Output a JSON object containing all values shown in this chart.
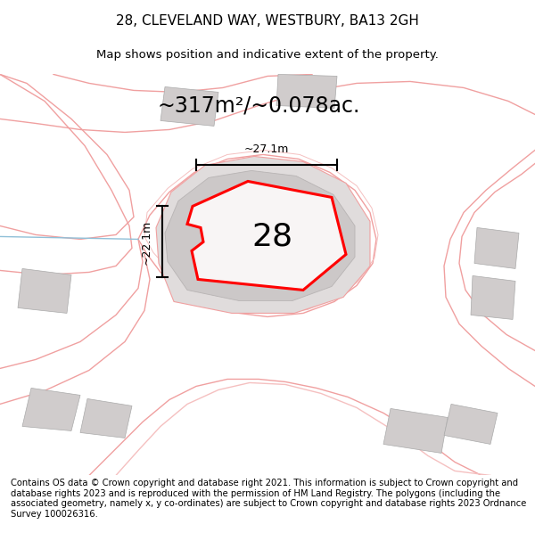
{
  "title": "28, CLEVELAND WAY, WESTBURY, BA13 2GH",
  "subtitle": "Map shows position and indicative extent of the property.",
  "area_label": "~317m²/~0.078ac.",
  "number_label": "28",
  "dim_width": "~27.1m",
  "dim_height": "~22.1m",
  "footer": "Contains OS data © Crown copyright and database right 2021. This information is subject to Crown copyright and database rights 2023 and is reproduced with the permission of HM Land Registry. The polygons (including the associated geometry, namely x, y co-ordinates) are subject to Crown copyright and database rights 2023 Ordnance Survey 100026316.",
  "bg_color": "#ffffff",
  "map_bg": "#ffffff",
  "red_outline": "#ff0000",
  "light_red": "#f0a0a0",
  "light_red2": "#f5c0c0",
  "gray_bldg": "#d0cccc",
  "title_fontsize": 11,
  "subtitle_fontsize": 9.5,
  "footer_fontsize": 7.2,
  "area_fontsize": 17,
  "number_fontsize": 26
}
